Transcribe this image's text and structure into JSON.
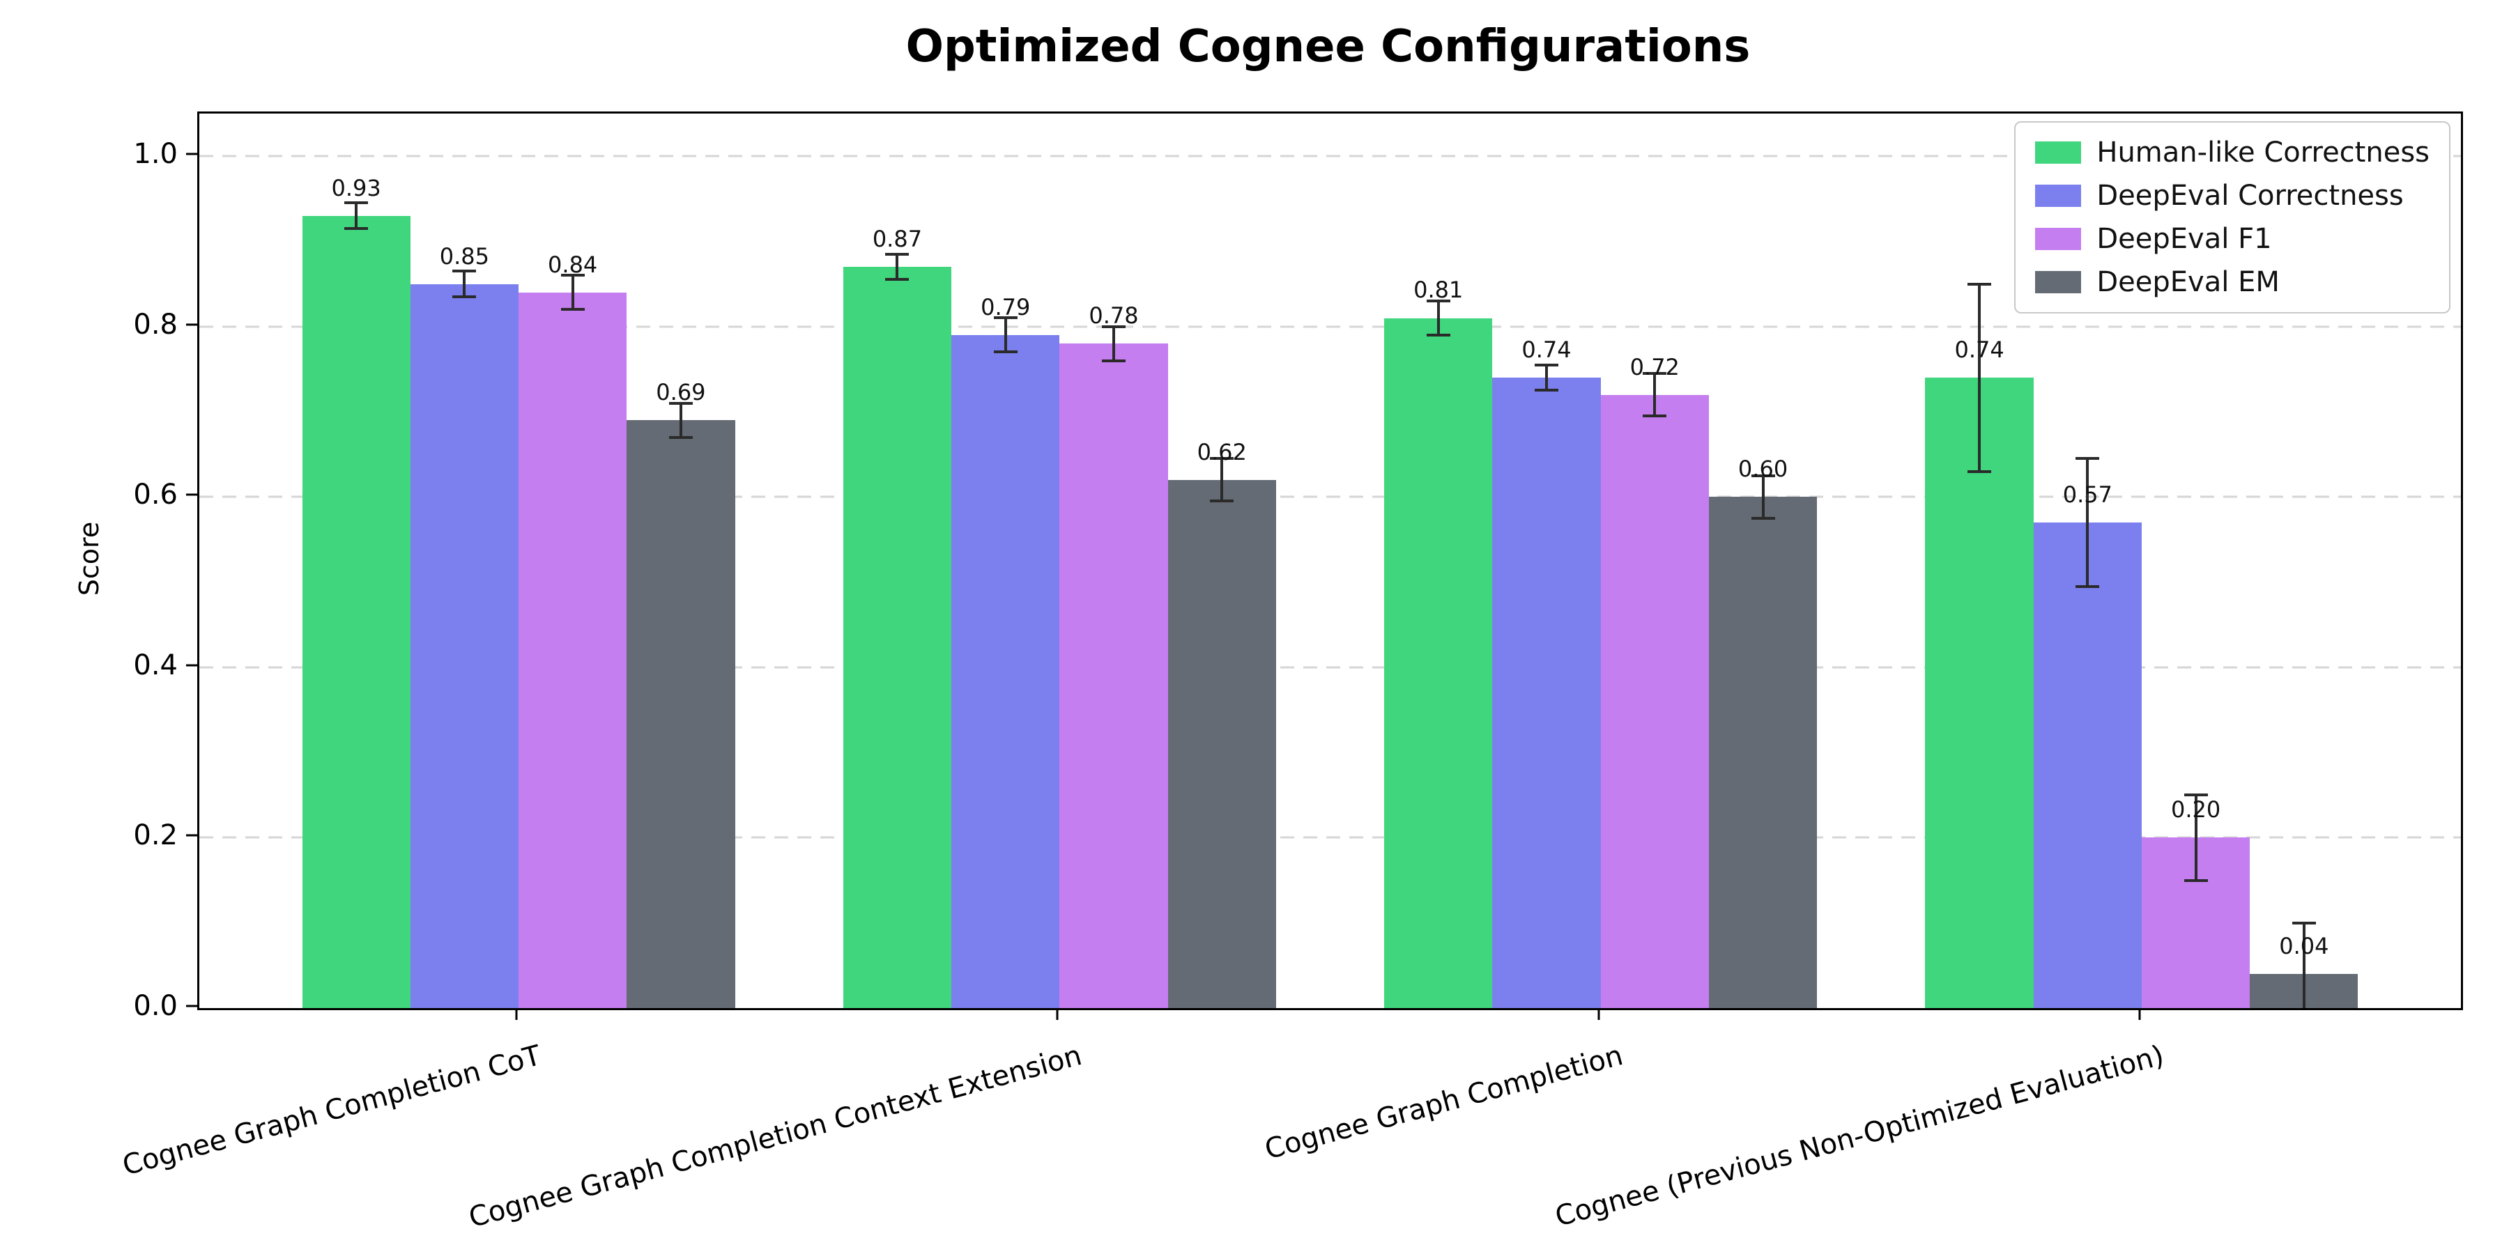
{
  "chart_data": {
    "type": "bar",
    "title": "Optimized Cognee Configurations",
    "xlabel": "",
    "ylabel": "Score",
    "ylim": [
      0,
      1.05
    ],
    "yticks": [
      0.0,
      0.2,
      0.4,
      0.6,
      0.8,
      1.0
    ],
    "grid": "horizontal-dashed",
    "grid_color": "#d6d6d6",
    "error_bar_color": "#2a2a2a",
    "legend_position": "upper right",
    "value_label_decimals": 2,
    "categories": [
      "Cognee Graph Completion CoT",
      "Cognee Graph Completion Context Extension",
      "Cognee Graph Completion",
      "Cognee (Previous Non-Optimized Evaluation)"
    ],
    "series": [
      {
        "name": "Human-like Correctness",
        "color": "#3fd67d",
        "values": [
          0.93,
          0.87,
          0.81,
          0.74
        ],
        "errors": [
          0.015,
          0.015,
          0.02,
          0.11
        ]
      },
      {
        "name": "DeepEval Correctness",
        "color": "#7b80ee",
        "values": [
          0.85,
          0.79,
          0.74,
          0.57
        ],
        "errors": [
          0.015,
          0.02,
          0.015,
          0.075
        ]
      },
      {
        "name": "DeepEval F1",
        "color": "#c57ef0",
        "values": [
          0.84,
          0.78,
          0.72,
          0.2
        ],
        "errors": [
          0.02,
          0.02,
          0.025,
          0.05
        ]
      },
      {
        "name": "DeepEval EM",
        "color": "#656b74",
        "values": [
          0.69,
          0.62,
          0.6,
          0.04
        ],
        "errors": [
          0.02,
          0.025,
          0.025,
          0.06
        ]
      }
    ]
  }
}
